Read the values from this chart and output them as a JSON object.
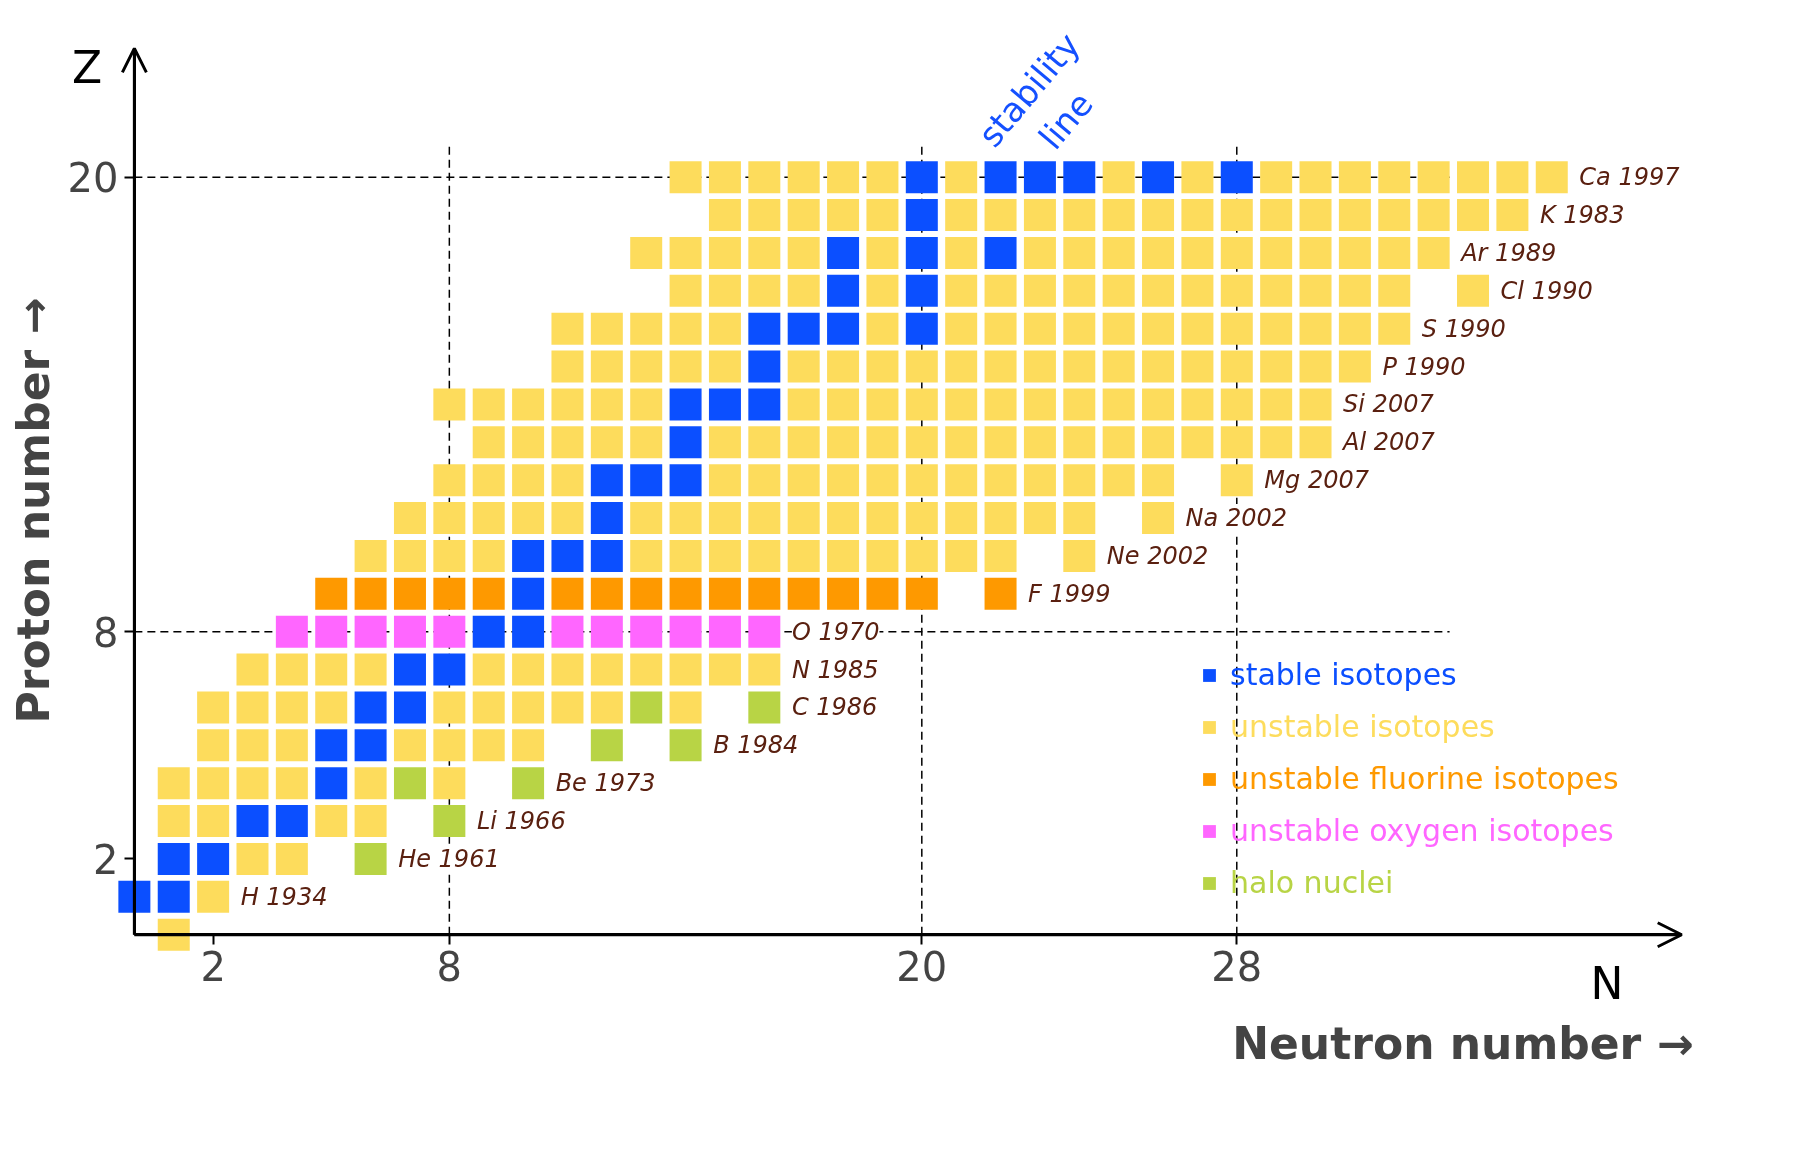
{
  "chart_data": {
    "type": "scatter",
    "marker": "square",
    "xlabel": "Neutron number →",
    "ylabel": "Proton number →",
    "xlim": [
      0,
      39.3
    ],
    "ylim": [
      0,
      23.4
    ],
    "xticks": [
      2,
      8,
      20,
      28
    ],
    "yticks": [
      2,
      8,
      20
    ],
    "legend": "bottom right",
    "series": [
      {
        "name": "stable isotopes",
        "color": "#0b4fff",
        "x": [
          0,
          1,
          1,
          2,
          3,
          4,
          5,
          5,
          6,
          6,
          7,
          7,
          8,
          9,
          10,
          10,
          10,
          11,
          12,
          12,
          12,
          13,
          14,
          14,
          14,
          15,
          16,
          16,
          16,
          17,
          18,
          20,
          18,
          20,
          18,
          20,
          22,
          20,
          20,
          22,
          23,
          24,
          26,
          28
        ],
        "values": [
          1,
          1,
          2,
          2,
          3,
          3,
          4,
          5,
          5,
          6,
          6,
          7,
          7,
          8,
          8,
          9,
          10,
          10,
          10,
          11,
          12,
          12,
          12,
          13,
          14,
          14,
          14,
          15,
          16,
          16,
          16,
          16,
          17,
          17,
          18,
          18,
          18,
          19,
          20,
          20,
          20,
          20,
          20,
          20
        ]
      },
      {
        "name": "unstable isotopes",
        "color": "#fddc5c",
        "x": [
          1,
          2,
          3,
          4,
          1,
          2,
          5,
          6,
          1,
          2,
          3,
          4,
          6,
          8,
          2,
          3,
          4,
          7,
          8,
          9,
          10,
          2,
          3,
          4,
          5,
          8,
          9,
          10,
          11,
          12,
          14,
          3,
          4,
          5,
          6,
          9,
          10,
          11,
          12,
          13,
          14,
          15,
          16,
          6,
          7,
          8,
          9,
          13,
          14,
          15,
          16,
          17,
          18,
          19,
          20,
          21,
          22,
          24,
          7,
          8,
          9,
          10,
          11,
          13,
          14,
          15,
          16,
          17,
          18,
          19,
          20,
          21,
          22,
          23,
          24,
          26,
          8,
          9,
          10,
          11,
          15,
          16,
          17,
          18,
          19,
          20,
          21,
          22,
          23,
          24,
          25,
          26,
          28,
          9,
          10,
          11,
          12,
          13,
          15,
          16,
          17,
          18,
          19,
          20,
          21,
          22,
          23,
          24,
          25,
          26,
          27,
          28,
          29,
          30,
          8,
          9,
          10,
          11,
          12,
          13,
          17,
          18,
          19,
          20,
          21,
          22,
          23,
          24,
          25,
          26,
          27,
          28,
          29,
          30,
          11,
          12,
          13,
          14,
          15,
          17,
          18,
          19,
          20,
          21,
          22,
          23,
          24,
          25,
          26,
          27,
          28,
          29,
          30,
          31,
          11,
          12,
          13,
          14,
          15,
          19,
          21,
          22,
          23,
          24,
          25,
          26,
          27,
          28,
          29,
          30,
          31,
          32,
          14,
          15,
          16,
          17,
          19,
          21,
          22,
          23,
          24,
          25,
          26,
          27,
          28,
          29,
          30,
          31,
          32,
          34,
          13,
          14,
          15,
          16,
          17,
          19,
          21,
          23,
          24,
          25,
          26,
          27,
          28,
          29,
          30,
          31,
          32,
          33,
          15,
          16,
          17,
          18,
          19,
          21,
          22,
          23,
          24,
          25,
          26,
          27,
          28,
          29,
          30,
          31,
          32,
          33,
          34,
          35,
          14,
          15,
          16,
          17,
          18,
          19,
          21,
          25,
          27,
          29,
          30,
          31,
          32,
          33,
          34,
          35,
          36
        ],
        "values": [
          0,
          1,
          2,
          2,
          3,
          3,
          3,
          3,
          4,
          4,
          4,
          4,
          4,
          4,
          5,
          5,
          5,
          5,
          5,
          5,
          5,
          6,
          6,
          6,
          6,
          6,
          6,
          6,
          6,
          6,
          6,
          7,
          7,
          7,
          7,
          7,
          7,
          7,
          7,
          7,
          7,
          7,
          7,
          10,
          10,
          10,
          10,
          10,
          10,
          10,
          10,
          10,
          10,
          10,
          10,
          10,
          10,
          10,
          11,
          11,
          11,
          11,
          11,
          11,
          11,
          11,
          11,
          11,
          11,
          11,
          11,
          11,
          11,
          11,
          11,
          11,
          12,
          12,
          12,
          12,
          12,
          12,
          12,
          12,
          12,
          12,
          12,
          12,
          12,
          12,
          12,
          12,
          12,
          13,
          13,
          13,
          13,
          13,
          13,
          13,
          13,
          13,
          13,
          13,
          13,
          13,
          13,
          13,
          13,
          13,
          13,
          13,
          13,
          13,
          14,
          14,
          14,
          14,
          14,
          14,
          14,
          14,
          14,
          14,
          14,
          14,
          14,
          14,
          14,
          14,
          14,
          14,
          14,
          14,
          15,
          15,
          15,
          15,
          15,
          15,
          15,
          15,
          15,
          15,
          15,
          15,
          15,
          15,
          15,
          15,
          15,
          15,
          15,
          15,
          16,
          16,
          16,
          16,
          16,
          16,
          16,
          16,
          16,
          16,
          16,
          16,
          16,
          16,
          16,
          16,
          16,
          16,
          17,
          17,
          17,
          17,
          17,
          17,
          17,
          17,
          17,
          17,
          17,
          17,
          17,
          17,
          17,
          17,
          17,
          17,
          18,
          18,
          18,
          18,
          18,
          18,
          18,
          18,
          18,
          18,
          18,
          18,
          18,
          18,
          18,
          18,
          18,
          18,
          19,
          19,
          19,
          19,
          19,
          19,
          19,
          19,
          19,
          19,
          19,
          19,
          19,
          19,
          19,
          19,
          19,
          19,
          19,
          19,
          20,
          20,
          20,
          20,
          20,
          20,
          20,
          20,
          20,
          20,
          20,
          20,
          20,
          20,
          20,
          20,
          20
        ]
      },
      {
        "name": "unstable fluorine isotopes",
        "color": "#fe9900",
        "x": [
          5,
          6,
          7,
          8,
          9,
          11,
          12,
          13,
          14,
          15,
          16,
          17,
          18,
          19,
          20,
          22
        ],
        "values": [
          9,
          9,
          9,
          9,
          9,
          9,
          9,
          9,
          9,
          9,
          9,
          9,
          9,
          9,
          9,
          9
        ]
      },
      {
        "name": "unstable oxygen isotopes",
        "color": "#ff66ff",
        "x": [
          4,
          5,
          6,
          7,
          8,
          11,
          12,
          13,
          14,
          15,
          16
        ],
        "values": [
          8,
          8,
          8,
          8,
          8,
          8,
          8,
          8,
          8,
          8,
          8
        ]
      },
      {
        "name": "halo nuclei",
        "color": "#b8d445",
        "x": [
          6,
          8,
          7,
          10,
          12,
          14,
          13,
          16
        ],
        "values": [
          2,
          3,
          4,
          4,
          5,
          5,
          6,
          6
        ]
      }
    ],
    "ref_lines": [
      {
        "axis": "x",
        "value": 8,
        "line_style": "dashed",
        "color": "#000000"
      },
      {
        "axis": "x",
        "value": 20,
        "line_style": "dashed",
        "color": "#000000"
      },
      {
        "axis": "x",
        "value": 28,
        "line_style": "dashed",
        "color": "#000000"
      },
      {
        "axis": "y",
        "value": 8,
        "line_style": "dashed",
        "color": "#000000"
      },
      {
        "axis": "y",
        "value": 20,
        "line_style": "dashed",
        "color": "#000000"
      }
    ],
    "annotations": [
      "stability line",
      "Z",
      "N",
      "Ca 1997",
      "K 1983",
      "Ar 1989",
      "Cl 1990",
      "S 1990",
      "P 1990",
      "Si 2007",
      "Al 2007",
      "Mg 2007",
      "Na 2002",
      "Ne 2002",
      "F 1999",
      "O 1970",
      "N 1985",
      "C 1986",
      "B 1984",
      "Be 1973",
      "Li 1966",
      "He 1961",
      "H 1934"
    ]
  }
}
